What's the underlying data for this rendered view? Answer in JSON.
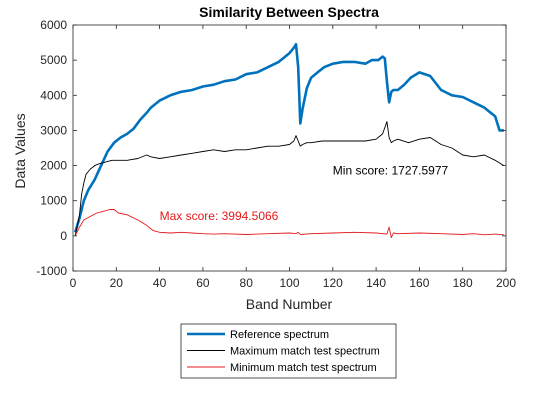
{
  "chart_data": {
    "type": "line",
    "title": "Similarity Between Spectra",
    "xlabel": "Band Number",
    "ylabel": "Data Values",
    "xlim": [
      0,
      200
    ],
    "ylim": [
      -1000,
      6000
    ],
    "xticks": [
      0,
      20,
      40,
      60,
      80,
      100,
      120,
      140,
      160,
      180,
      200
    ],
    "yticks": [
      -1000,
      0,
      1000,
      2000,
      3000,
      4000,
      5000,
      6000
    ],
    "grid": false,
    "legend_position": "bottom-center-outside",
    "series": [
      {
        "name": "Reference spectrum",
        "color": "#0072BD",
        "line_width": "thick",
        "x": [
          1,
          3,
          5,
          7,
          10,
          13,
          16,
          19,
          22,
          25,
          28,
          31,
          34,
          36,
          40,
          45,
          50,
          55,
          60,
          65,
          70,
          75,
          80,
          85,
          90,
          95,
          98,
          100,
          102,
          103,
          104,
          105,
          106,
          108,
          110,
          113,
          116,
          120,
          125,
          130,
          135,
          138,
          141,
          143,
          144,
          145,
          146,
          147,
          148,
          150,
          153,
          156,
          160,
          165,
          170,
          175,
          180,
          185,
          190,
          193,
          195,
          197,
          199
        ],
        "y": [
          100,
          500,
          1000,
          1300,
          1600,
          2000,
          2400,
          2650,
          2800,
          2900,
          3050,
          3300,
          3500,
          3650,
          3850,
          4000,
          4100,
          4150,
          4250,
          4300,
          4400,
          4450,
          4600,
          4650,
          4800,
          4950,
          5100,
          5200,
          5350,
          5450,
          4800,
          3200,
          3600,
          4200,
          4500,
          4650,
          4800,
          4900,
          4950,
          4950,
          4900,
          5000,
          5000,
          5100,
          5050,
          4400,
          3800,
          4100,
          4150,
          4150,
          4300,
          4500,
          4650,
          4550,
          4150,
          4000,
          3950,
          3800,
          3650,
          3500,
          3400,
          3000,
          3000
        ]
      },
      {
        "name": "Maximum match test spectrum",
        "color": "#000000",
        "line_width": "thin",
        "x": [
          1,
          3,
          4,
          5,
          6,
          8,
          10,
          12,
          15,
          18,
          20,
          25,
          30,
          34,
          36,
          40,
          45,
          50,
          55,
          60,
          65,
          70,
          75,
          80,
          85,
          90,
          95,
          100,
          102,
          103,
          104,
          105,
          106,
          108,
          110,
          115,
          120,
          125,
          130,
          135,
          140,
          143,
          145,
          146,
          147,
          148,
          150,
          155,
          160,
          165,
          170,
          175,
          180,
          185,
          190,
          195,
          199
        ],
        "y": [
          0,
          600,
          1200,
          1500,
          1750,
          1900,
          2000,
          2050,
          2100,
          2150,
          2150,
          2150,
          2200,
          2300,
          2250,
          2200,
          2250,
          2300,
          2350,
          2400,
          2450,
          2400,
          2450,
          2450,
          2500,
          2550,
          2550,
          2600,
          2700,
          2850,
          2700,
          2550,
          2600,
          2650,
          2650,
          2700,
          2700,
          2700,
          2700,
          2700,
          2750,
          2900,
          3250,
          2800,
          2650,
          2700,
          2750,
          2650,
          2750,
          2800,
          2600,
          2500,
          2300,
          2250,
          2300,
          2150,
          2000
        ]
      },
      {
        "name": "Minimum match test spectrum",
        "color": "#E41A1C",
        "line_width": "thin",
        "x": [
          1,
          3,
          5,
          8,
          11,
          14,
          17,
          19,
          21,
          25,
          30,
          34,
          37,
          40,
          45,
          50,
          55,
          60,
          65,
          70,
          80,
          90,
          100,
          103,
          104,
          105,
          110,
          120,
          130,
          140,
          145,
          146,
          147,
          148,
          150,
          160,
          170,
          180,
          185,
          190,
          195,
          199
        ],
        "y": [
          0,
          250,
          450,
          550,
          650,
          700,
          750,
          750,
          650,
          600,
          450,
          300,
          150,
          100,
          80,
          100,
          80,
          60,
          50,
          60,
          40,
          60,
          80,
          60,
          100,
          40,
          60,
          80,
          100,
          80,
          50,
          250,
          -50,
          80,
          60,
          80,
          60,
          40,
          60,
          30,
          50,
          30
        ]
      }
    ],
    "annotations": [
      {
        "text": "Min score: 1727.5977",
        "x": 120,
        "y": 1750,
        "color": "#000000"
      },
      {
        "text": "Max score: 3994.5066",
        "x": 40,
        "y": 450,
        "color": "#E41A1C"
      }
    ]
  }
}
